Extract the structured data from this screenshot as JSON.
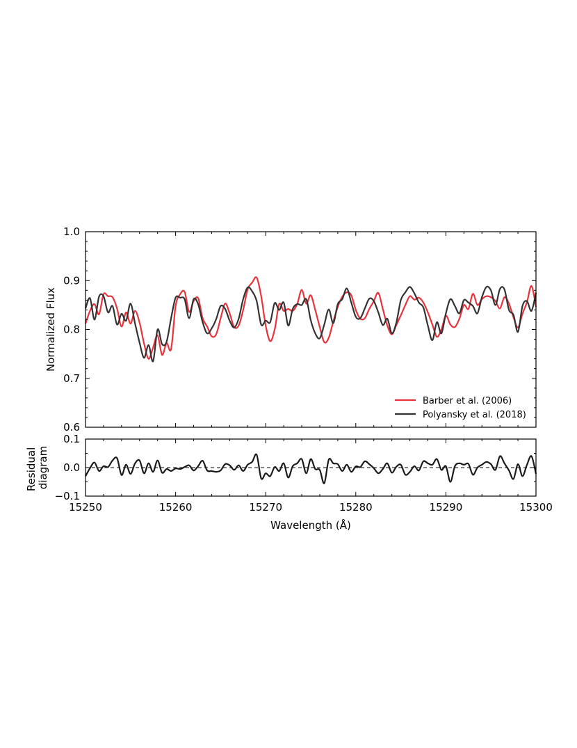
{
  "chart_data": [
    {
      "type": "line",
      "panel": "spectrum",
      "title": "",
      "xlabel": "",
      "ylabel": "Normalized Flux",
      "xlim": [
        15250,
        15300
      ],
      "ylim": [
        0.6,
        1.0
      ],
      "xticks": [
        15250,
        15260,
        15270,
        15280,
        15290,
        15300
      ],
      "yticks": [
        0.6,
        0.7,
        0.8,
        0.9,
        1.0
      ],
      "ytick_labels": [
        "0.6",
        "0.7",
        "0.8",
        "0.9",
        "1.0"
      ],
      "legend_position": "lower-right",
      "grid": false,
      "x": [
        15250.0,
        15250.5,
        15251.0,
        15251.5,
        15252.0,
        15252.5,
        15253.0,
        15253.5,
        15254.0,
        15254.5,
        15255.0,
        15255.5,
        15256.0,
        15256.5,
        15257.0,
        15257.5,
        15258.0,
        15258.5,
        15259.0,
        15259.5,
        15260.0,
        15260.5,
        15261.0,
        15261.5,
        15262.0,
        15262.5,
        15263.0,
        15263.5,
        15264.0,
        15264.5,
        15265.0,
        15265.5,
        15266.0,
        15266.5,
        15267.0,
        15267.5,
        15268.0,
        15268.5,
        15269.0,
        15269.5,
        15270.0,
        15270.5,
        15271.0,
        15271.5,
        15272.0,
        15272.5,
        15273.0,
        15273.5,
        15274.0,
        15274.5,
        15275.0,
        15275.5,
        15276.0,
        15276.5,
        15277.0,
        15277.5,
        15278.0,
        15278.5,
        15279.0,
        15279.5,
        15280.0,
        15280.5,
        15281.0,
        15281.5,
        15282.0,
        15282.5,
        15283.0,
        15283.5,
        15284.0,
        15284.5,
        15285.0,
        15285.5,
        15286.0,
        15286.5,
        15287.0,
        15287.5,
        15288.0,
        15288.5,
        15289.0,
        15289.5,
        15290.0,
        15290.5,
        15291.0,
        15291.5,
        15292.0,
        15292.5,
        15293.0,
        15293.5,
        15294.0,
        15294.5,
        15295.0,
        15295.5,
        15296.0,
        15296.5,
        15297.0,
        15297.5,
        15298.0,
        15298.5,
        15299.0,
        15299.5,
        15300.0
      ],
      "series": [
        {
          "name": "Barber et al. (2006)",
          "color": "#e8333c",
          "values": [
            0.812,
            0.838,
            0.852,
            0.831,
            0.872,
            0.868,
            0.866,
            0.843,
            0.806,
            0.835,
            0.812,
            0.838,
            0.814,
            0.771,
            0.74,
            0.763,
            0.788,
            0.748,
            0.772,
            0.76,
            0.848,
            0.872,
            0.877,
            0.836,
            0.858,
            0.864,
            0.823,
            0.806,
            0.786,
            0.79,
            0.823,
            0.853,
            0.833,
            0.805,
            0.808,
            0.84,
            0.882,
            0.896,
            0.906,
            0.868,
            0.808,
            0.776,
            0.8,
            0.852,
            0.838,
            0.842,
            0.838,
            0.852,
            0.881,
            0.853,
            0.87,
            0.84,
            0.805,
            0.774,
            0.783,
            0.816,
            0.846,
            0.867,
            0.876,
            0.87,
            0.84,
            0.822,
            0.823,
            0.842,
            0.858,
            0.875,
            0.842,
            0.808,
            0.79,
            0.809,
            0.829,
            0.85,
            0.868,
            0.861,
            0.865,
            0.855,
            0.835,
            0.81,
            0.785,
            0.8,
            0.828,
            0.81,
            0.805,
            0.822,
            0.85,
            0.842,
            0.873,
            0.85,
            0.862,
            0.868,
            0.866,
            0.858,
            0.843,
            0.866,
            0.853,
            0.825,
            0.804,
            0.832,
            0.856,
            0.889,
            0.846
          ]
        },
        {
          "name": "Polyansky et al. (2018)",
          "color": "#333333",
          "values": [
            0.843,
            0.864,
            0.82,
            0.867,
            0.868,
            0.835,
            0.848,
            0.81,
            0.832,
            0.818,
            0.853,
            0.812,
            0.773,
            0.742,
            0.768,
            0.735,
            0.8,
            0.77,
            0.775,
            0.823,
            0.865,
            0.865,
            0.862,
            0.823,
            0.862,
            0.852,
            0.815,
            0.792,
            0.802,
            0.821,
            0.848,
            0.842,
            0.818,
            0.804,
            0.822,
            0.862,
            0.886,
            0.878,
            0.858,
            0.81,
            0.818,
            0.815,
            0.854,
            0.84,
            0.855,
            0.808,
            0.842,
            0.852,
            0.85,
            0.862,
            0.819,
            0.792,
            0.782,
            0.81,
            0.841,
            0.813,
            0.852,
            0.862,
            0.884,
            0.855,
            0.826,
            0.823,
            0.843,
            0.863,
            0.858,
            0.835,
            0.809,
            0.822,
            0.792,
            0.814,
            0.86,
            0.876,
            0.887,
            0.874,
            0.855,
            0.845,
            0.808,
            0.778,
            0.815,
            0.792,
            0.833,
            0.862,
            0.848,
            0.833,
            0.86,
            0.855,
            0.848,
            0.833,
            0.866,
            0.887,
            0.88,
            0.85,
            0.883,
            0.882,
            0.84,
            0.83,
            0.795,
            0.848,
            0.858,
            0.838,
            0.875
          ]
        }
      ]
    },
    {
      "type": "line",
      "panel": "residual",
      "title": "",
      "xlabel": "Wavelength (Å)",
      "ylabel": "Residual\ndiagram",
      "ylabel_lines": [
        "Residual",
        "diagram"
      ],
      "xlim": [
        15250,
        15300
      ],
      "ylim": [
        -0.1,
        0.1
      ],
      "xticks": [
        15250,
        15260,
        15270,
        15280,
        15290,
        15300
      ],
      "xtick_labels": [
        "15250",
        "15260",
        "15270",
        "15280",
        "15290",
        "15300"
      ],
      "yticks": [
        -0.1,
        0.0,
        0.1
      ],
      "ytick_labels": [
        "−0.1",
        "0.0",
        "0.1"
      ],
      "reference_line": 0.0,
      "grid": false,
      "x": [
        15250.0,
        15250.5,
        15251.0,
        15251.5,
        15252.0,
        15252.5,
        15253.0,
        15253.5,
        15254.0,
        15254.5,
        15255.0,
        15255.5,
        15256.0,
        15256.5,
        15257.0,
        15257.5,
        15258.0,
        15258.5,
        15259.0,
        15259.5,
        15260.0,
        15260.5,
        15261.0,
        15261.5,
        15262.0,
        15262.5,
        15263.0,
        15263.5,
        15264.0,
        15264.5,
        15265.0,
        15265.5,
        15266.0,
        15266.5,
        15267.0,
        15267.5,
        15268.0,
        15268.5,
        15269.0,
        15269.5,
        15270.0,
        15270.5,
        15271.0,
        15271.5,
        15272.0,
        15272.5,
        15273.0,
        15273.5,
        15274.0,
        15274.5,
        15275.0,
        15275.5,
        15276.0,
        15276.5,
        15277.0,
        15277.5,
        15278.0,
        15278.5,
        15279.0,
        15279.5,
        15280.0,
        15280.5,
        15281.0,
        15281.5,
        15282.0,
        15282.5,
        15283.0,
        15283.5,
        15284.0,
        15284.5,
        15285.0,
        15285.5,
        15286.0,
        15286.5,
        15287.0,
        15287.5,
        15288.0,
        15288.5,
        15289.0,
        15289.5,
        15290.0,
        15290.5,
        15291.0,
        15291.5,
        15292.0,
        15292.5,
        15293.0,
        15293.5,
        15294.0,
        15294.5,
        15295.0,
        15295.5,
        15296.0,
        15296.5,
        15297.0,
        15297.5,
        15298.0,
        15298.5,
        15299.0,
        15299.5,
        15300.0
      ],
      "series": [
        {
          "color": "#1a1a1a",
          "values": [
            -0.03,
            -0.002,
            0.018,
            -0.012,
            0.005,
            0.002,
            0.025,
            0.033,
            -0.026,
            0.01,
            -0.022,
            0.015,
            0.025,
            -0.02,
            0.015,
            -0.015,
            0.025,
            -0.018,
            -0.005,
            -0.012,
            -0.003,
            -0.005,
            0.002,
            0.008,
            -0.01,
            0.005,
            0.024,
            -0.01,
            -0.012,
            -0.015,
            -0.01,
            0.012,
            0.008,
            -0.008,
            0.008,
            -0.012,
            0.01,
            0.02,
            0.045,
            -0.038,
            -0.02,
            -0.03,
            0.002,
            -0.012,
            0.015,
            -0.035,
            0.005,
            0.015,
            0.03,
            -0.02,
            0.03,
            -0.005,
            -0.008,
            -0.055,
            0.028,
            0.015,
            0.012,
            -0.012,
            0.01,
            -0.015,
            0.004,
            0.002,
            0.022,
            0.012,
            -0.002,
            -0.02,
            -0.005,
            0.015,
            -0.018,
            0.003,
            0.01,
            -0.025,
            -0.015,
            0.005,
            -0.01,
            0.022,
            0.015,
            0.01,
            0.03,
            -0.008,
            0.005,
            -0.05,
            0.005,
            0.015,
            0.01,
            0.013,
            -0.025,
            0.0,
            0.01,
            0.02,
            0.012,
            -0.008,
            0.04,
            0.015,
            -0.01,
            -0.04,
            0.012,
            -0.03,
            0.01,
            0.04,
            -0.022
          ]
        }
      ]
    }
  ]
}
